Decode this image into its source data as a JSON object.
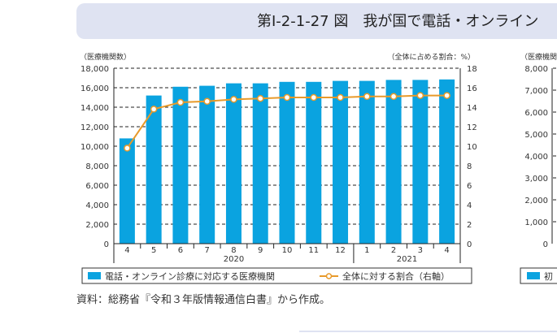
{
  "title": "第Ⅰ-2-1-27 図　我が国で電話・オンライン",
  "source_note": "資料：総務省『令和３年版情報通信白書』から作成。",
  "chart_data": {
    "type": "bar",
    "categories": [
      "4",
      "5",
      "6",
      "7",
      "8",
      "9",
      "10",
      "11",
      "12",
      "1",
      "2",
      "3",
      "4"
    ],
    "year_labels": [
      "2020",
      "2021"
    ],
    "left_axis_label": "（医療機関数）",
    "right_axis_label": "（全体に占める割合：%）",
    "left_ylim": [
      0,
      18000
    ],
    "left_ticks": [
      "0",
      "2,000",
      "4,000",
      "6,000",
      "8,000",
      "10,000",
      "12,000",
      "14,000",
      "16,000",
      "18,000"
    ],
    "right_ylim": [
      0,
      18
    ],
    "right_ticks": [
      "0",
      "2",
      "4",
      "6",
      "8",
      "10",
      "12",
      "14",
      "16",
      "18"
    ],
    "series": [
      {
        "name": "電話・オンライン診療に対応する医療機関",
        "type": "bar",
        "axis": "left",
        "values": [
          10800,
          15200,
          16100,
          16200,
          16450,
          16450,
          16600,
          16600,
          16700,
          16700,
          16800,
          16800,
          16850
        ],
        "color": "#0aa3e0"
      },
      {
        "name": "全体に対する割合（右軸）",
        "type": "line",
        "axis": "right",
        "values": [
          9.8,
          13.8,
          14.5,
          14.6,
          14.8,
          14.9,
          15.0,
          15.0,
          15.0,
          15.1,
          15.1,
          15.2,
          15.2
        ],
        "color": "#e89a2a"
      }
    ],
    "grid": true
  },
  "second_chart": {
    "left_axis_label": "（医療機関数",
    "left_ticks": [
      "0",
      "1,000",
      "2,000",
      "3,000",
      "4,000",
      "5,000",
      "6,000",
      "7,000",
      "8,000"
    ],
    "legend_label": "初"
  }
}
